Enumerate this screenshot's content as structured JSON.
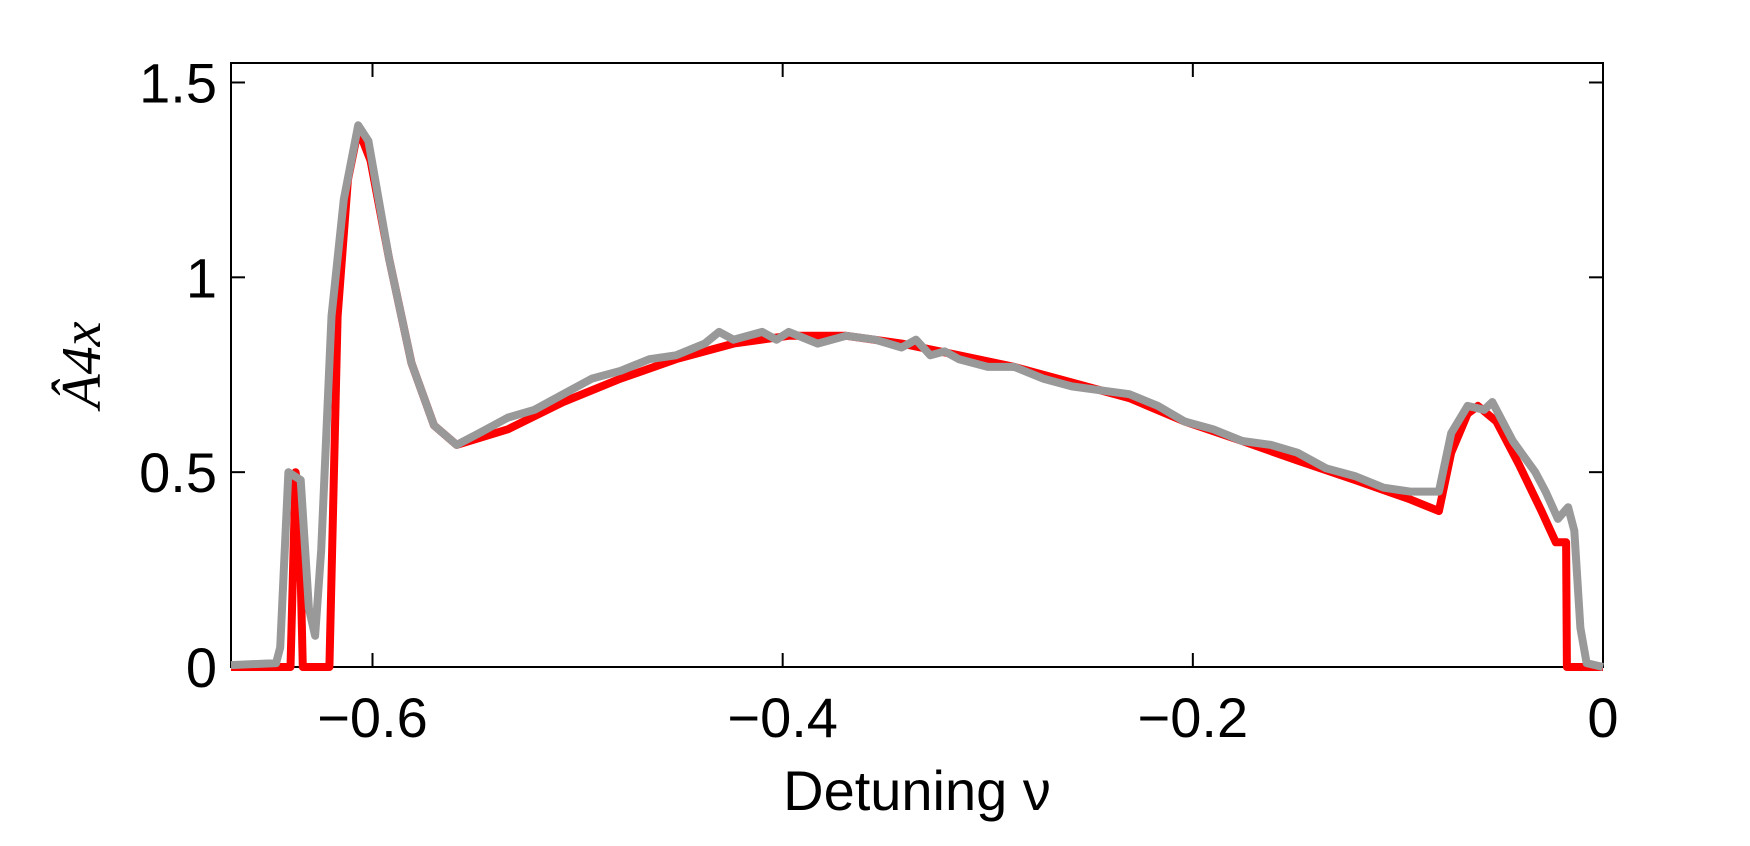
{
  "chart_data": {
    "type": "line",
    "xlabel": "Detuning ν",
    "ylabel": "Â4x",
    "xlim": [
      -0.669,
      0
    ],
    "ylim": [
      0,
      1.55
    ],
    "xticks": [
      {
        "value": -0.6,
        "label": "−0.6"
      },
      {
        "value": -0.4,
        "label": "−0.4"
      },
      {
        "value": -0.2,
        "label": "−0.2"
      },
      0
    ],
    "yticks": [
      0,
      0.5,
      1,
      1.5
    ],
    "series": [
      {
        "color": "#ff0000",
        "x": [
          -0.669,
          -0.642,
          -0.64,
          -0.6375,
          -0.636,
          -0.634,
          -0.623,
          -0.621,
          -0.617,
          -0.612,
          -0.607,
          -0.601,
          -0.592,
          -0.581,
          -0.57,
          -0.559,
          -0.534,
          -0.507,
          -0.479,
          -0.452,
          -0.424,
          -0.397,
          -0.369,
          -0.342,
          -0.314,
          -0.287,
          -0.259,
          -0.231,
          -0.204,
          -0.176,
          -0.149,
          -0.121,
          -0.094,
          -0.08,
          -0.074,
          -0.066,
          -0.061,
          -0.052,
          -0.041,
          -0.03,
          -0.023,
          -0.018,
          -0.0176,
          0
        ],
        "values": [
          0,
          0,
          0,
          0.5,
          0.45,
          0,
          0,
          0,
          0.9,
          1.25,
          1.38,
          1.3,
          1.05,
          0.78,
          0.62,
          0.57,
          0.61,
          0.68,
          0.74,
          0.79,
          0.83,
          0.85,
          0.85,
          0.83,
          0.8,
          0.77,
          0.73,
          0.69,
          0.63,
          0.58,
          0.53,
          0.48,
          0.43,
          0.4,
          0.55,
          0.65,
          0.67,
          0.63,
          0.52,
          0.4,
          0.32,
          0.32,
          0,
          0
        ]
      },
      {
        "color": "#999999",
        "x": [
          -0.669,
          -0.647,
          -0.645,
          -0.641,
          -0.635,
          -0.631,
          -0.628,
          -0.625,
          -0.62,
          -0.614,
          -0.607,
          -0.602,
          -0.592,
          -0.581,
          -0.57,
          -0.559,
          -0.548,
          -0.534,
          -0.521,
          -0.507,
          -0.493,
          -0.479,
          -0.465,
          -0.452,
          -0.438,
          -0.431,
          -0.424,
          -0.41,
          -0.403,
          -0.397,
          -0.383,
          -0.369,
          -0.355,
          -0.342,
          -0.335,
          -0.328,
          -0.321,
          -0.314,
          -0.3,
          -0.287,
          -0.273,
          -0.259,
          -0.245,
          -0.231,
          -0.217,
          -0.204,
          -0.19,
          -0.176,
          -0.162,
          -0.149,
          -0.135,
          -0.121,
          -0.107,
          -0.094,
          -0.08,
          -0.074,
          -0.066,
          -0.058,
          -0.054,
          -0.044,
          -0.033,
          -0.028,
          -0.022,
          -0.017,
          -0.014,
          -0.011,
          -0.008,
          0
        ],
        "values": [
          0.005,
          0.01,
          0.05,
          0.5,
          0.48,
          0.15,
          0.08,
          0.3,
          0.9,
          1.2,
          1.39,
          1.35,
          1.05,
          0.78,
          0.62,
          0.57,
          0.6,
          0.64,
          0.66,
          0.7,
          0.74,
          0.76,
          0.79,
          0.8,
          0.83,
          0.86,
          0.84,
          0.86,
          0.84,
          0.86,
          0.83,
          0.85,
          0.84,
          0.82,
          0.84,
          0.8,
          0.81,
          0.79,
          0.77,
          0.77,
          0.74,
          0.72,
          0.71,
          0.7,
          0.67,
          0.63,
          0.61,
          0.58,
          0.57,
          0.55,
          0.51,
          0.49,
          0.46,
          0.45,
          0.45,
          0.6,
          0.67,
          0.66,
          0.68,
          0.58,
          0.5,
          0.45,
          0.38,
          0.41,
          0.35,
          0.1,
          0.01,
          0
        ]
      }
    ],
    "grid": false
  }
}
